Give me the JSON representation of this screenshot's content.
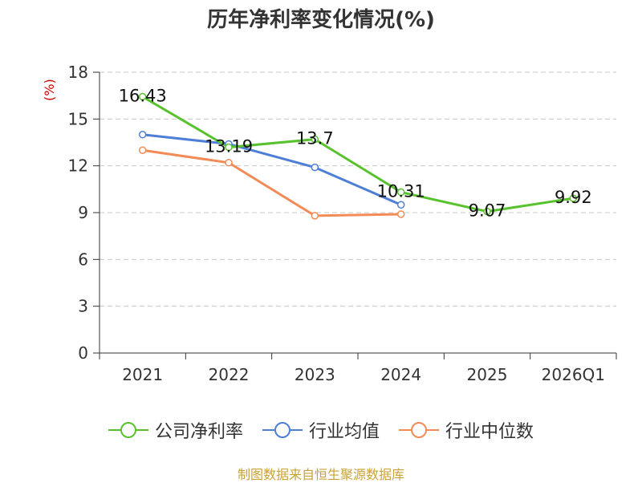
{
  "chart_data": {
    "type": "line",
    "title": "历年净利率变化情况(%)",
    "ylabel": "(%)",
    "xlabel": "",
    "categories": [
      "2021",
      "2022",
      "2023",
      "2024",
      "2025",
      "2026Q1"
    ],
    "ylim": [
      0,
      18
    ],
    "yticks": [
      0,
      3,
      6,
      9,
      12,
      15,
      18
    ],
    "grid": true,
    "legend_position": "bottom",
    "series": [
      {
        "name": "公司净利率",
        "color": "#58c22e",
        "values": [
          16.43,
          13.19,
          13.7,
          10.31,
          9.07,
          9.92
        ],
        "labels": [
          "16.43",
          "13.19",
          "13.7",
          "10.31",
          "9.07",
          "9.92"
        ]
      },
      {
        "name": "行业均值",
        "color": "#4e7fd6",
        "values": [
          14.0,
          13.4,
          11.9,
          9.5,
          null,
          null
        ]
      },
      {
        "name": "行业中位数",
        "color": "#f28b55",
        "values": [
          13.0,
          12.2,
          8.8,
          8.9,
          null,
          null
        ]
      }
    ]
  },
  "source": "制图数据来自恒生聚源数据库"
}
